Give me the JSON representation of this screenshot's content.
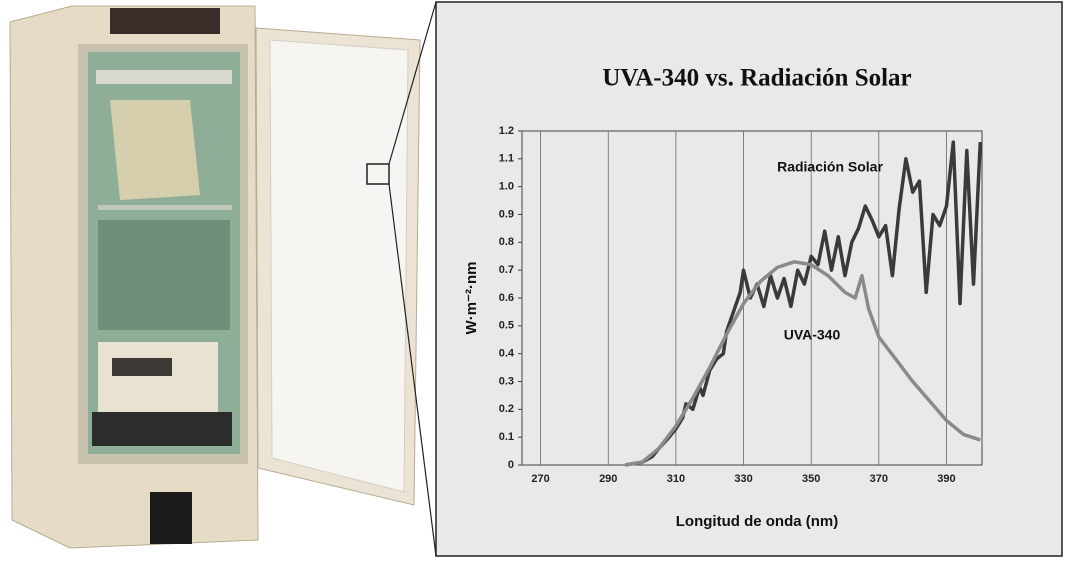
{
  "chart_data": {
    "type": "line",
    "title": "UVA-340 vs. Radiación Solar",
    "x_label": "Longitud de onda (nm)",
    "y_label": "W·m⁻²·nm",
    "xlim": [
      264.5,
      400.5
    ],
    "ylim": [
      0,
      1.2
    ],
    "xticks": [
      270,
      290,
      310,
      330,
      350,
      370,
      390
    ],
    "yticks": [
      0,
      0.1,
      0.2,
      0.3,
      0.4,
      0.5,
      0.6,
      0.7,
      0.8,
      0.9,
      {
        "value": 1,
        "label": "1.0"
      },
      1.1,
      1.2
    ],
    "grid": "x",
    "series": [
      {
        "name": "Radiación Solar",
        "color": "#3a3a3a",
        "x": [
          295,
          300,
          303,
          305,
          308,
          310,
          312,
          313,
          315,
          317,
          318,
          320,
          322,
          324,
          325,
          327,
          329,
          330,
          332,
          334,
          336,
          338,
          340,
          342,
          344,
          346,
          348,
          350,
          352,
          354,
          356,
          358,
          360,
          362,
          364,
          366,
          368,
          370,
          372,
          374,
          376,
          378,
          380,
          382,
          384,
          386,
          388,
          390,
          392,
          394,
          396,
          398,
          400
        ],
        "values": [
          0,
          0.01,
          0.03,
          0.06,
          0.1,
          0.13,
          0.17,
          0.22,
          0.2,
          0.28,
          0.25,
          0.34,
          0.38,
          0.4,
          0.48,
          0.55,
          0.62,
          0.7,
          0.6,
          0.65,
          0.57,
          0.68,
          0.6,
          0.67,
          0.57,
          0.7,
          0.65,
          0.75,
          0.72,
          0.84,
          0.7,
          0.82,
          0.68,
          0.8,
          0.85,
          0.93,
          0.88,
          0.82,
          0.86,
          0.68,
          0.92,
          1.1,
          0.98,
          1.02,
          0.62,
          0.9,
          0.86,
          0.93,
          1.16,
          0.58,
          1.13,
          0.65,
          1.16
        ]
      },
      {
        "name": "UVA-340",
        "color": "#8a8a8a",
        "x": [
          295,
          300,
          305,
          310,
          315,
          320,
          325,
          330,
          335,
          340,
          345,
          350,
          355,
          360,
          363,
          365,
          367,
          370,
          375,
          380,
          385,
          390,
          395,
          400
        ],
        "values": [
          0,
          0.01,
          0.06,
          0.14,
          0.24,
          0.35,
          0.47,
          0.58,
          0.66,
          0.71,
          0.73,
          0.72,
          0.68,
          0.62,
          0.6,
          0.68,
          0.56,
          0.46,
          0.38,
          0.3,
          0.23,
          0.16,
          0.11,
          0.09
        ]
      }
    ]
  }
}
